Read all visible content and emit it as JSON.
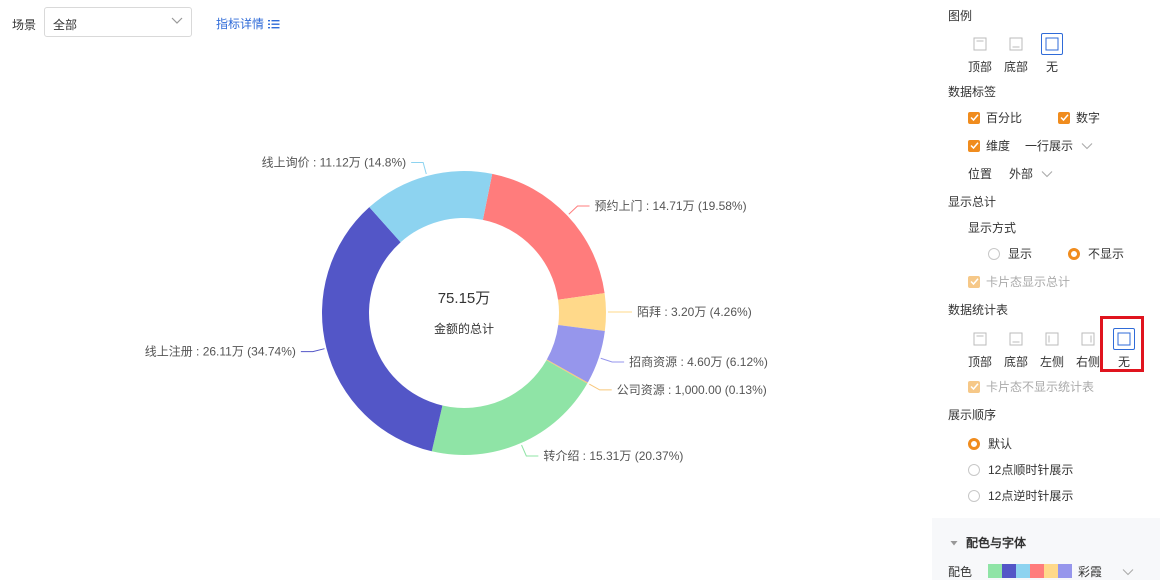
{
  "filter": {
    "label": "场景",
    "value": "全部",
    "detail_link": "指标详情"
  },
  "chart_data": {
    "type": "pie",
    "center_value": "75.15万",
    "center_label": "金额的总计",
    "slices": [
      {
        "name": "预约上门",
        "value_text": "14.71万",
        "percent": 19.58,
        "pct_text": "19.58%",
        "color": "#ff7c7c"
      },
      {
        "name": "陌拜",
        "value_text": "3.20万",
        "percent": 4.26,
        "pct_text": "4.26%",
        "color": "#ffd98a"
      },
      {
        "name": "招商资源",
        "value_text": "4.60万",
        "percent": 6.12,
        "pct_text": "6.12%",
        "color": "#9696ec"
      },
      {
        "name": "公司资源",
        "value_text": "1,000.00",
        "percent": 0.13,
        "pct_text": "0.13%",
        "color": "#f8c67a"
      },
      {
        "name": "转介绍",
        "value_text": "15.31万",
        "percent": 20.37,
        "pct_text": "20.37%",
        "color": "#8fe4a6"
      },
      {
        "name": "线上注册",
        "value_text": "26.11万",
        "percent": 34.74,
        "pct_text": "34.74%",
        "color": "#5356c7"
      },
      {
        "name": "线上询价",
        "value_text": "11.12万",
        "percent": 14.8,
        "pct_text": "14.8%",
        "color": "#8dd3f0"
      }
    ]
  },
  "panel": {
    "legend": {
      "title": "图例",
      "options": [
        "顶部",
        "底部",
        "无"
      ],
      "selected": "无"
    },
    "data_label": {
      "title": "数据标签",
      "percent": "百分比",
      "number": "数字",
      "dimension": "维度",
      "dimension_mode": "一行展示",
      "position_label": "位置",
      "position_value": "外部"
    },
    "total": {
      "title": "显示总计",
      "mode_label": "显示方式",
      "show": "显示",
      "hide": "不显示",
      "selected": "不显示",
      "card_total": "卡片态显示总计"
    },
    "stats_table": {
      "title": "数据统计表",
      "options": [
        "顶部",
        "底部",
        "左侧",
        "右侧",
        "无"
      ],
      "selected": "无",
      "card_no_table": "卡片态不显示统计表"
    },
    "order": {
      "title": "展示顺序",
      "options": [
        "默认",
        "12点顺时针展示",
        "12点逆时针展示"
      ],
      "selected": "默认"
    },
    "palette": {
      "title": "配色与字体",
      "label": "配色",
      "scheme": "彩霞",
      "colors": [
        "#8fe4a6",
        "#5356c7",
        "#8dd3f0",
        "#ff7c7c",
        "#ffd98a",
        "#9696ec"
      ]
    }
  }
}
